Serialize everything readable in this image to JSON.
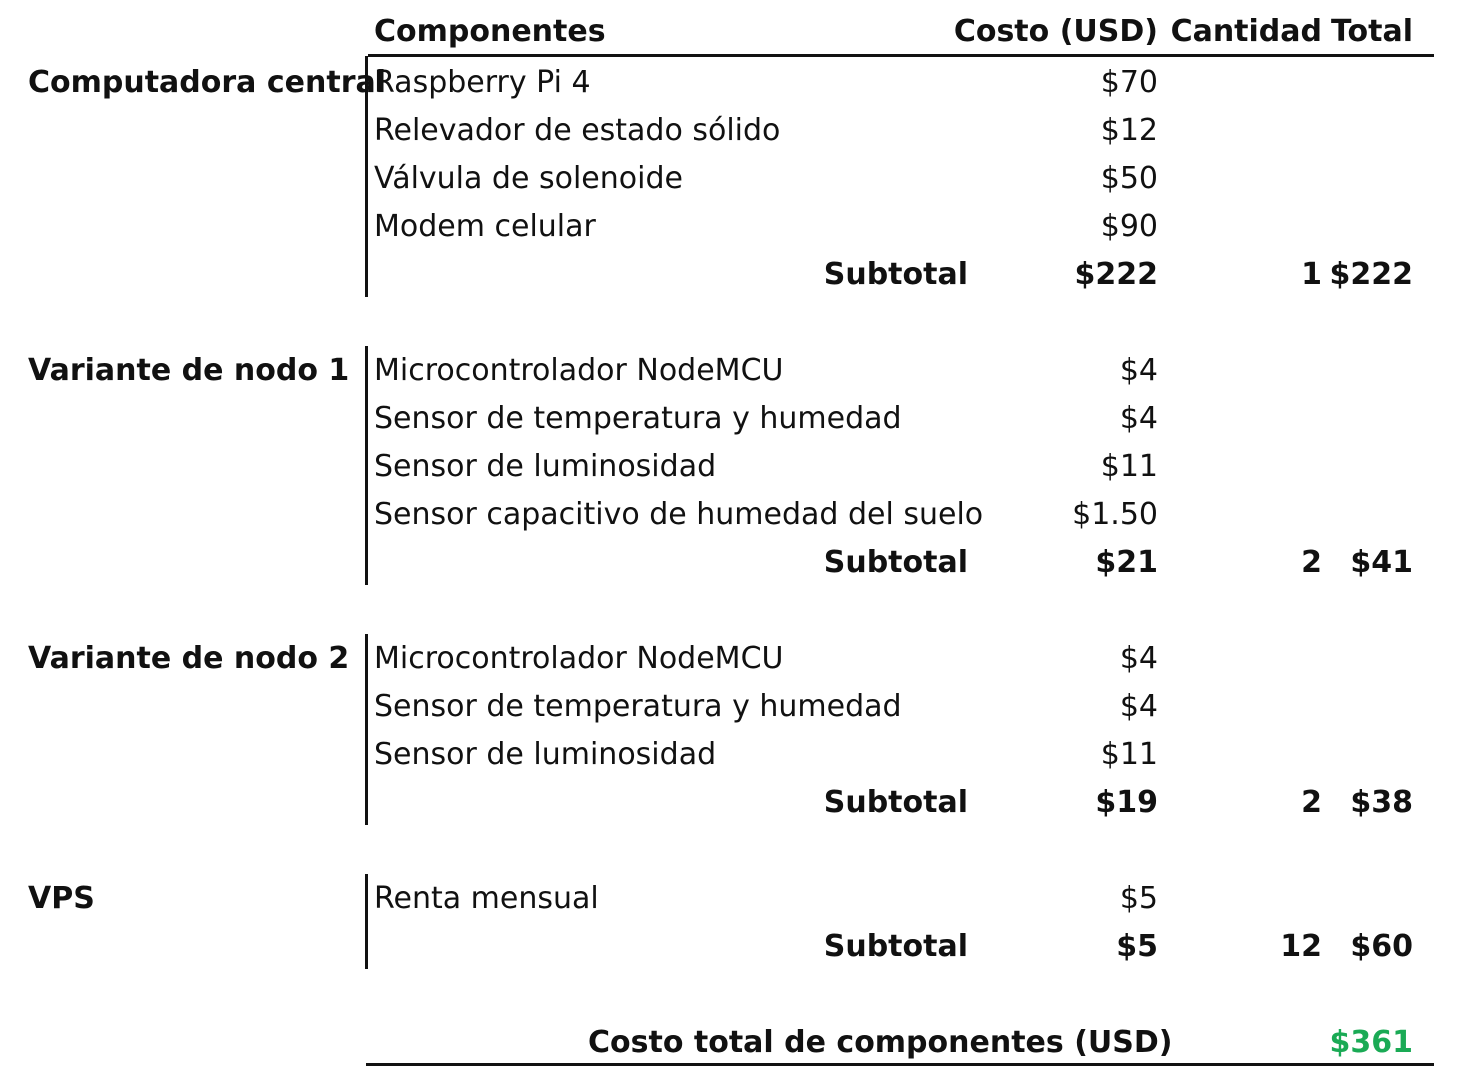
{
  "header": {
    "components": "Componentes",
    "cost": "Costo (USD)",
    "quantity": "Cantidad",
    "total": "Total"
  },
  "groups": [
    {
      "label": "Computadora central",
      "items": [
        {
          "name": "Raspberry Pi 4",
          "cost": "$70"
        },
        {
          "name": "Relevador de estado sólido",
          "cost": "$12"
        },
        {
          "name": "Válvula de solenoide",
          "cost": "$50"
        },
        {
          "name": "Modem celular",
          "cost": "$90"
        }
      ],
      "subtotal_label": "Subtotal",
      "subtotal_cost": "$222",
      "quantity": "1",
      "total": "$222"
    },
    {
      "label": "Variante de nodo 1",
      "items": [
        {
          "name": "Microcontrolador NodeMCU",
          "cost": "$4"
        },
        {
          "name": "Sensor de temperatura y humedad",
          "cost": "$4"
        },
        {
          "name": "Sensor de luminosidad",
          "cost": "$11"
        },
        {
          "name": "Sensor capacitivo de humedad del suelo",
          "cost": "$1.50"
        }
      ],
      "subtotal_label": "Subtotal",
      "subtotal_cost": "$21",
      "quantity": "2",
      "total": "$41"
    },
    {
      "label": "Variante de nodo 2",
      "items": [
        {
          "name": "Microcontrolador NodeMCU",
          "cost": "$4"
        },
        {
          "name": "Sensor de temperatura y humedad",
          "cost": "$4"
        },
        {
          "name": "Sensor de luminosidad",
          "cost": "$11"
        }
      ],
      "subtotal_label": "Subtotal",
      "subtotal_cost": "$19",
      "quantity": "2",
      "total": "$38"
    },
    {
      "label": "VPS",
      "items": [
        {
          "name": "Renta mensual",
          "cost": "$5"
        }
      ],
      "subtotal_label": "Subtotal",
      "subtotal_cost": "$5",
      "quantity": "12",
      "total": "$60"
    }
  ],
  "grand_total": {
    "label": "Costo total de componentes (USD)",
    "value": "$361"
  },
  "colors": {
    "grand_total_value": "#1aaa55"
  }
}
